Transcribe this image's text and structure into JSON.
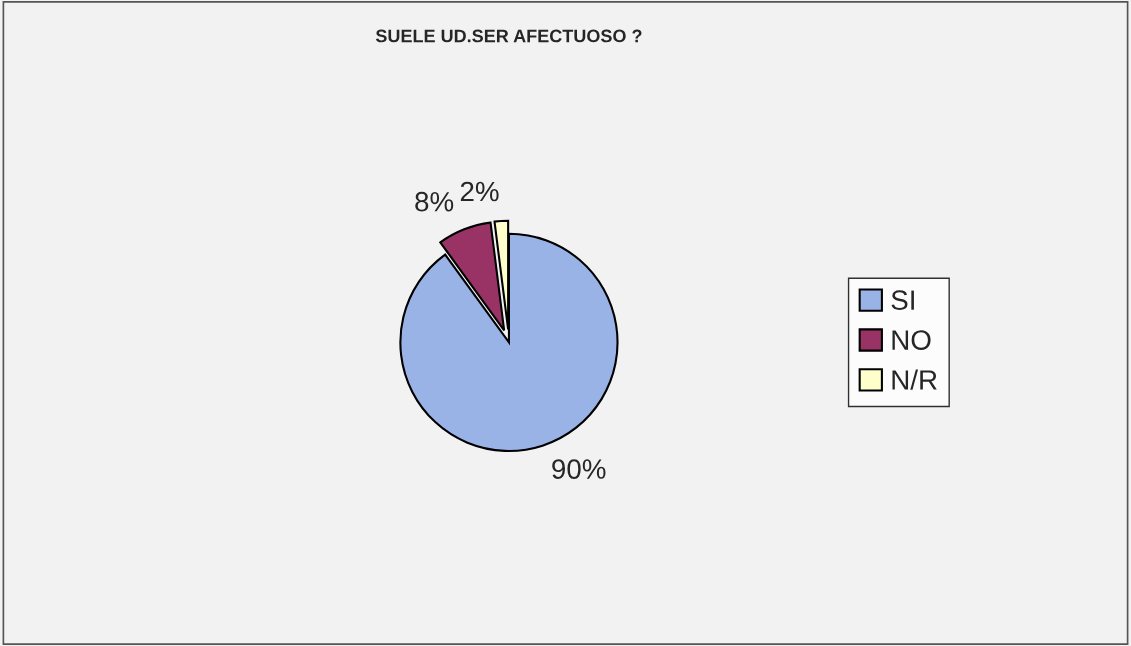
{
  "chart_data": {
    "type": "pie",
    "title": "SUELE UD.SER AFECTUOSO ?",
    "categories": [
      "SI",
      "NO",
      "N/R"
    ],
    "values": [
      90,
      8,
      2
    ],
    "value_labels": [
      "90%",
      "8%",
      "2%"
    ],
    "colors": [
      "#99b3e6",
      "#993366",
      "#ffffcc"
    ],
    "legend": "right"
  }
}
